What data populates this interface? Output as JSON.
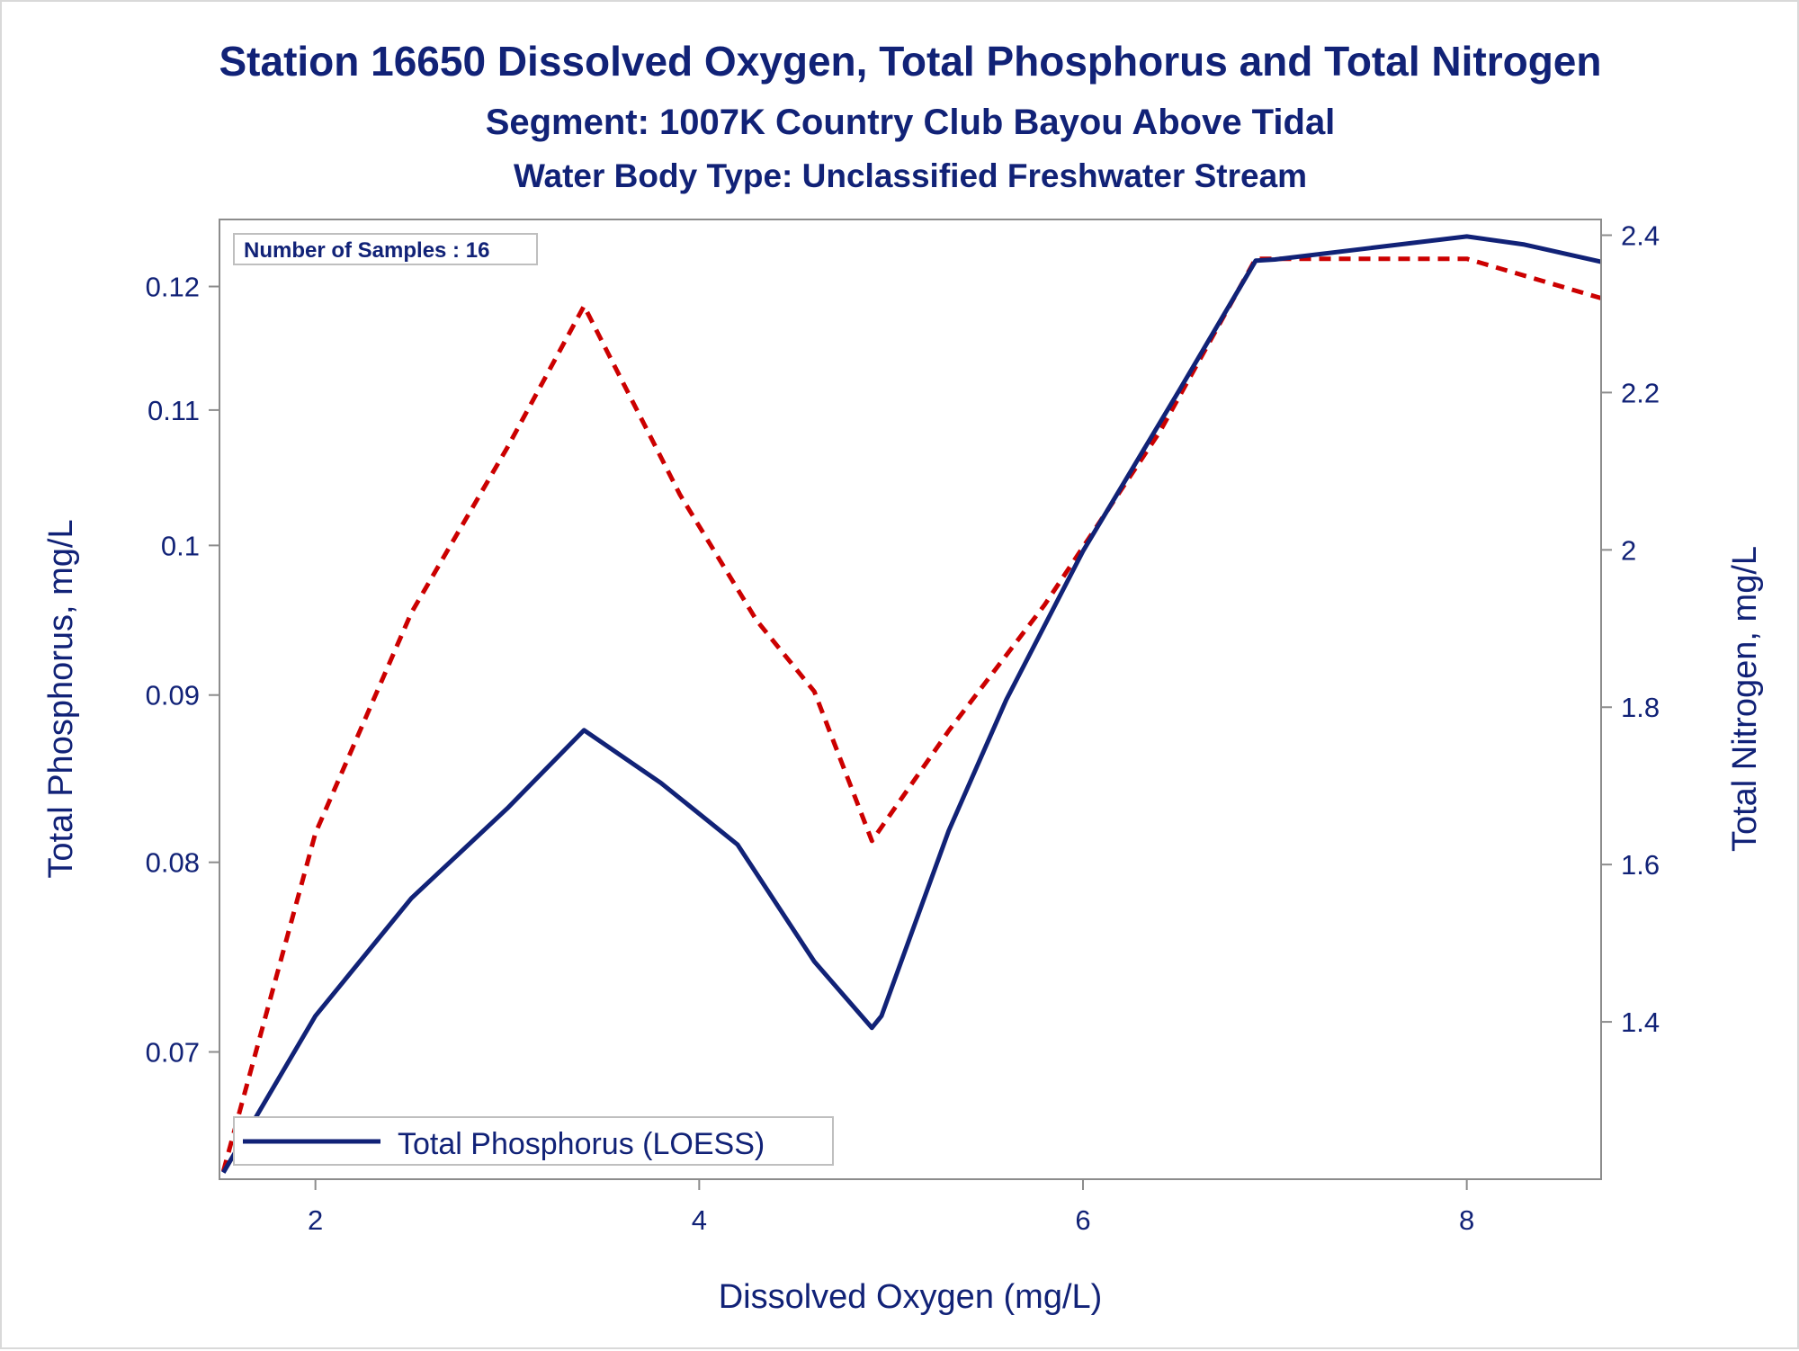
{
  "chart_data": {
    "type": "line",
    "title": "Station 16650  Dissolved Oxygen, Total Phosphorus and Total Nitrogen",
    "subtitle": "Segment: 1007K  Country Club Bayou Above Tidal",
    "subtitle2": "Water Body Type: Unclassified Freshwater Stream",
    "xlabel": "Dissolved Oxygen (mg/L)",
    "ylabel_left": "Total Phosphorus, mg/L",
    "ylabel_right": "Total Nitrogen, mg/L",
    "xlim": [
      1.5,
      8.7
    ],
    "ylim_left": [
      0.064,
      0.1258
    ],
    "ylim_right": [
      1.2,
      2.42
    ],
    "yscale_left": "log",
    "yscale_right": "linear",
    "x_ticks": [
      "2",
      "4",
      "6",
      "8"
    ],
    "y_ticks_left": [
      "0.07",
      "0.08",
      "0.09",
      "0.1",
      "0.11",
      "0.12"
    ],
    "y_ticks_right": [
      "1.4",
      "1.6",
      "1.8",
      "2",
      "2.2",
      "2.4"
    ],
    "grid": false,
    "annotation": "Number of Samples : 16",
    "legend": {
      "entry": "Total Phosphorus (LOESS)",
      "position": "bottom-left"
    },
    "series": [
      {
        "name": "Total Phosphorus (LOESS)",
        "axis": "left",
        "color": "#112277",
        "style": "solid",
        "x": [
          1.52,
          2.0,
          2.5,
          3.0,
          3.4,
          3.8,
          4.2,
          4.6,
          4.9,
          4.95,
          5.3,
          5.6,
          6.0,
          6.5,
          6.9,
          7.0,
          7.5,
          8.0,
          8.3,
          8.7
        ],
        "y": [
          0.0643,
          0.0718,
          0.078,
          0.0831,
          0.0878,
          0.0846,
          0.081,
          0.0746,
          0.0712,
          0.0718,
          0.0818,
          0.0897,
          0.0996,
          0.1115,
          0.1222,
          0.1223,
          0.1233,
          0.1243,
          0.1236,
          0.1221
        ]
      },
      {
        "name": "Total Nitrogen",
        "axis": "right",
        "color": "#cc0000",
        "style": "dashed",
        "x": [
          1.52,
          2.0,
          2.5,
          3.0,
          3.4,
          3.9,
          4.3,
          4.6,
          4.9,
          5.3,
          5.8,
          6.4,
          6.9,
          7.5,
          8.0,
          8.7
        ],
        "y": [
          1.21,
          1.64,
          1.92,
          2.13,
          2.31,
          2.07,
          1.91,
          1.82,
          1.63,
          1.77,
          1.93,
          2.15,
          2.37,
          2.37,
          2.37,
          2.32
        ]
      }
    ]
  }
}
